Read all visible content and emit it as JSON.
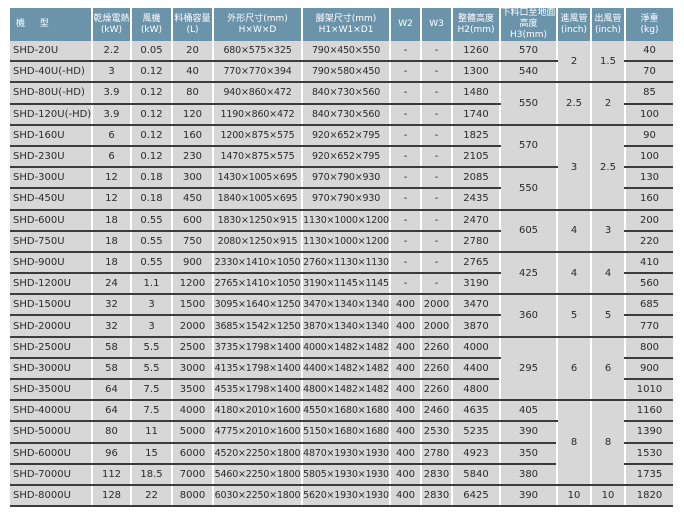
{
  "headers": [
    "機 型",
    "乾燥電熱\n(kW)",
    "風機\n(kW)",
    "料桶容量\n(L)",
    "外形尺寸(mm)\nH×W×D",
    "腳架尺寸(mm)\nH1×W1×D1",
    "W2",
    "W3",
    "整體高度\nH2(mm)",
    "下料口至地面\n高度H3(mm)",
    "進風管\n(inch)",
    "出風管\n(inch)",
    "淨重\n(kg)"
  ],
  "rows": [
    {
      "model": "SHD-20U",
      "dryer_kw": "2.2",
      "fan_kw": "0.05",
      "capacity": "20",
      "outer": "680×575×325",
      "frame": "790×450×550",
      "w2": "-",
      "w3": "-",
      "h2": "1260",
      "weight": "40"
    },
    {
      "model": "SHD-40U(-HD)",
      "dryer_kw": "3",
      "fan_kw": "0.12",
      "capacity": "40",
      "outer": "770×770×394",
      "frame": "790×580×450",
      "w2": "-",
      "w3": "-",
      "h2": "1300",
      "weight": "70"
    },
    {
      "model": "SHD-80U(-HD)",
      "dryer_kw": "3.9",
      "fan_kw": "0.12",
      "capacity": "80",
      "outer": "940×860×472",
      "frame": "840×730×560",
      "w2": "-",
      "w3": "-",
      "h2": "1480",
      "weight": "85"
    },
    {
      "model": "SHD-120U(-HD)",
      "dryer_kw": "3.9",
      "fan_kw": "0.12",
      "capacity": "120",
      "outer": "1190×860×472",
      "frame": "840×730×560",
      "w2": "-",
      "w3": "-",
      "h2": "1740",
      "weight": "100"
    },
    {
      "model": "SHD-160U",
      "dryer_kw": "6",
      "fan_kw": "0.12",
      "capacity": "160",
      "outer": "1200×875×575",
      "frame": "920×652×795",
      "w2": "-",
      "w3": "-",
      "h2": "1825",
      "weight": "90"
    },
    {
      "model": "SHD-230U",
      "dryer_kw": "6",
      "fan_kw": "0.12",
      "capacity": "230",
      "outer": "1470×875×575",
      "frame": "920×652×795",
      "w2": "-",
      "w3": "-",
      "h2": "2105",
      "weight": "100"
    },
    {
      "model": "SHD-300U",
      "dryer_kw": "12",
      "fan_kw": "0.18",
      "capacity": "300",
      "outer": "1430×1005×695",
      "frame": "970×790×930",
      "w2": "-",
      "w3": "-",
      "h2": "2085",
      "weight": "130"
    },
    {
      "model": "SHD-450U",
      "dryer_kw": "12",
      "fan_kw": "0.18",
      "capacity": "450",
      "outer": "1840×1005×695",
      "frame": "970×790×930",
      "w2": "-",
      "w3": "-",
      "h2": "2435",
      "weight": "160"
    },
    {
      "model": "SHD-600U",
      "dryer_kw": "18",
      "fan_kw": "0.55",
      "capacity": "600",
      "outer": "1830×1250×915",
      "frame": "1130×1000×1200",
      "w2": "-",
      "w3": "-",
      "h2": "2470",
      "weight": "200"
    },
    {
      "model": "SHD-750U",
      "dryer_kw": "18",
      "fan_kw": "0.55",
      "capacity": "750",
      "outer": "2080×1250×915",
      "frame": "1130×1000×1200",
      "w2": "-",
      "w3": "-",
      "h2": "2780",
      "weight": "220"
    },
    {
      "model": "SHD-900U",
      "dryer_kw": "18",
      "fan_kw": "0.55",
      "capacity": "900",
      "outer": "2330×1410×1050",
      "frame": "2760×1130×1130",
      "w2": "-",
      "w3": "-",
      "h2": "2765",
      "weight": "410"
    },
    {
      "model": "SHD-1200U",
      "dryer_kw": "24",
      "fan_kw": "1.1",
      "capacity": "1200",
      "outer": "2765×1410×1050",
      "frame": "3190×1145×1145",
      "w2": "-",
      "w3": "-",
      "h2": "3190",
      "weight": "560"
    },
    {
      "model": "SHD-1500U",
      "dryer_kw": "32",
      "fan_kw": "3",
      "capacity": "1500",
      "outer": "3095×1640×1250",
      "frame": "3470×1340×1340",
      "w2": "400",
      "w3": "2000",
      "h2": "3470",
      "weight": "685"
    },
    {
      "model": "SHD-2000U",
      "dryer_kw": "32",
      "fan_kw": "3",
      "capacity": "2000",
      "outer": "3685×1542×1250",
      "frame": "3870×1340×1340",
      "w2": "400",
      "w3": "2000",
      "h2": "3870",
      "weight": "770"
    },
    {
      "model": "SHD-2500U",
      "dryer_kw": "58",
      "fan_kw": "5.5",
      "capacity": "2500",
      "outer": "3735×1798×1400",
      "frame": "4000×1482×1482",
      "w2": "400",
      "w3": "2260",
      "h2": "4000",
      "weight": "800"
    },
    {
      "model": "SHD-3000U",
      "dryer_kw": "58",
      "fan_kw": "5.5",
      "capacity": "3000",
      "outer": "4135×1798×1400",
      "frame": "4400×1482×1482",
      "w2": "400",
      "w3": "2260",
      "h2": "4400",
      "weight": "900"
    },
    {
      "model": "SHD-3500U",
      "dryer_kw": "64",
      "fan_kw": "7.5",
      "capacity": "3500",
      "outer": "4535×1798×1400",
      "frame": "4800×1482×1482",
      "w2": "400",
      "w3": "2260",
      "h2": "4800",
      "weight": "1010"
    },
    {
      "model": "SHD-4000U",
      "dryer_kw": "64",
      "fan_kw": "7.5",
      "capacity": "4000",
      "outer": "4180×2010×1600",
      "frame": "4550×1680×1680",
      "w2": "400",
      "w3": "2460",
      "h2": "4635",
      "weight": "1160"
    },
    {
      "model": "SHD-5000U",
      "dryer_kw": "80",
      "fan_kw": "11",
      "capacity": "5000",
      "outer": "4775×2010×1600",
      "frame": "5150×1680×1680",
      "w2": "400",
      "w3": "2530",
      "h2": "5235",
      "weight": "1390"
    },
    {
      "model": "SHD-6000U",
      "dryer_kw": "96",
      "fan_kw": "15",
      "capacity": "6000",
      "outer": "4520×2250×1800",
      "frame": "4870×1930×1930",
      "w2": "400",
      "w3": "2780",
      "h2": "4923",
      "weight": "1530"
    },
    {
      "model": "SHD-7000U",
      "dryer_kw": "112",
      "fan_kw": "18.5",
      "capacity": "7000",
      "outer": "5460×2250×1800",
      "frame": "5805×1930×1930",
      "w2": "400",
      "w3": "2830",
      "h2": "5840",
      "weight": "1735"
    },
    {
      "model": "SHD-8000U",
      "dryer_kw": "128",
      "fan_kw": "22",
      "capacity": "8000",
      "outer": "6030×2250×1800",
      "frame": "5620×1930×1930",
      "w2": "400",
      "w3": "2830",
      "h2": "6425",
      "weight": "1820"
    }
  ],
  "h3_groups": [
    {
      "value": "570",
      "rows": 1
    },
    {
      "value": "540",
      "rows": 1
    },
    {
      "value": "550",
      "rows": 2
    },
    {
      "value": "570",
      "rows": 2
    },
    {
      "value": "550",
      "rows": 2
    },
    {
      "value": "605",
      "rows": 2
    },
    {
      "value": "425",
      "rows": 2
    },
    {
      "value": "360",
      "rows": 2
    },
    {
      "value": "295",
      "rows": 3
    },
    {
      "value": "405",
      "rows": 1
    },
    {
      "value": "390",
      "rows": 1
    },
    {
      "value": "350",
      "rows": 1
    },
    {
      "value": "380",
      "rows": 1
    },
    {
      "value": "390",
      "rows": 1
    }
  ],
  "inlet_groups": [
    {
      "value": "2",
      "rows": 2
    },
    {
      "value": "2.5",
      "rows": 2
    },
    {
      "value": "3",
      "rows": 4
    },
    {
      "value": "4",
      "rows": 2
    },
    {
      "value": "4",
      "rows": 2
    },
    {
      "value": "5",
      "rows": 2
    },
    {
      "value": "6",
      "rows": 3
    },
    {
      "value": "8",
      "rows": 4
    },
    {
      "value": "10",
      "rows": 1
    }
  ],
  "outlet_groups": [
    {
      "value": "1.5",
      "rows": 2
    },
    {
      "value": "2",
      "rows": 2
    },
    {
      "value": "2.5",
      "rows": 4
    },
    {
      "value": "3",
      "rows": 2
    },
    {
      "value": "4",
      "rows": 2
    },
    {
      "value": "5",
      "rows": 2
    },
    {
      "value": "6",
      "rows": 3
    },
    {
      "value": "8",
      "rows": 4
    },
    {
      "value": "10",
      "rows": 1
    }
  ],
  "colors": {
    "header_bg": "#6b93aa",
    "cell_bg": "#d7d7d7",
    "row_rule": "#3c3c3c"
  }
}
